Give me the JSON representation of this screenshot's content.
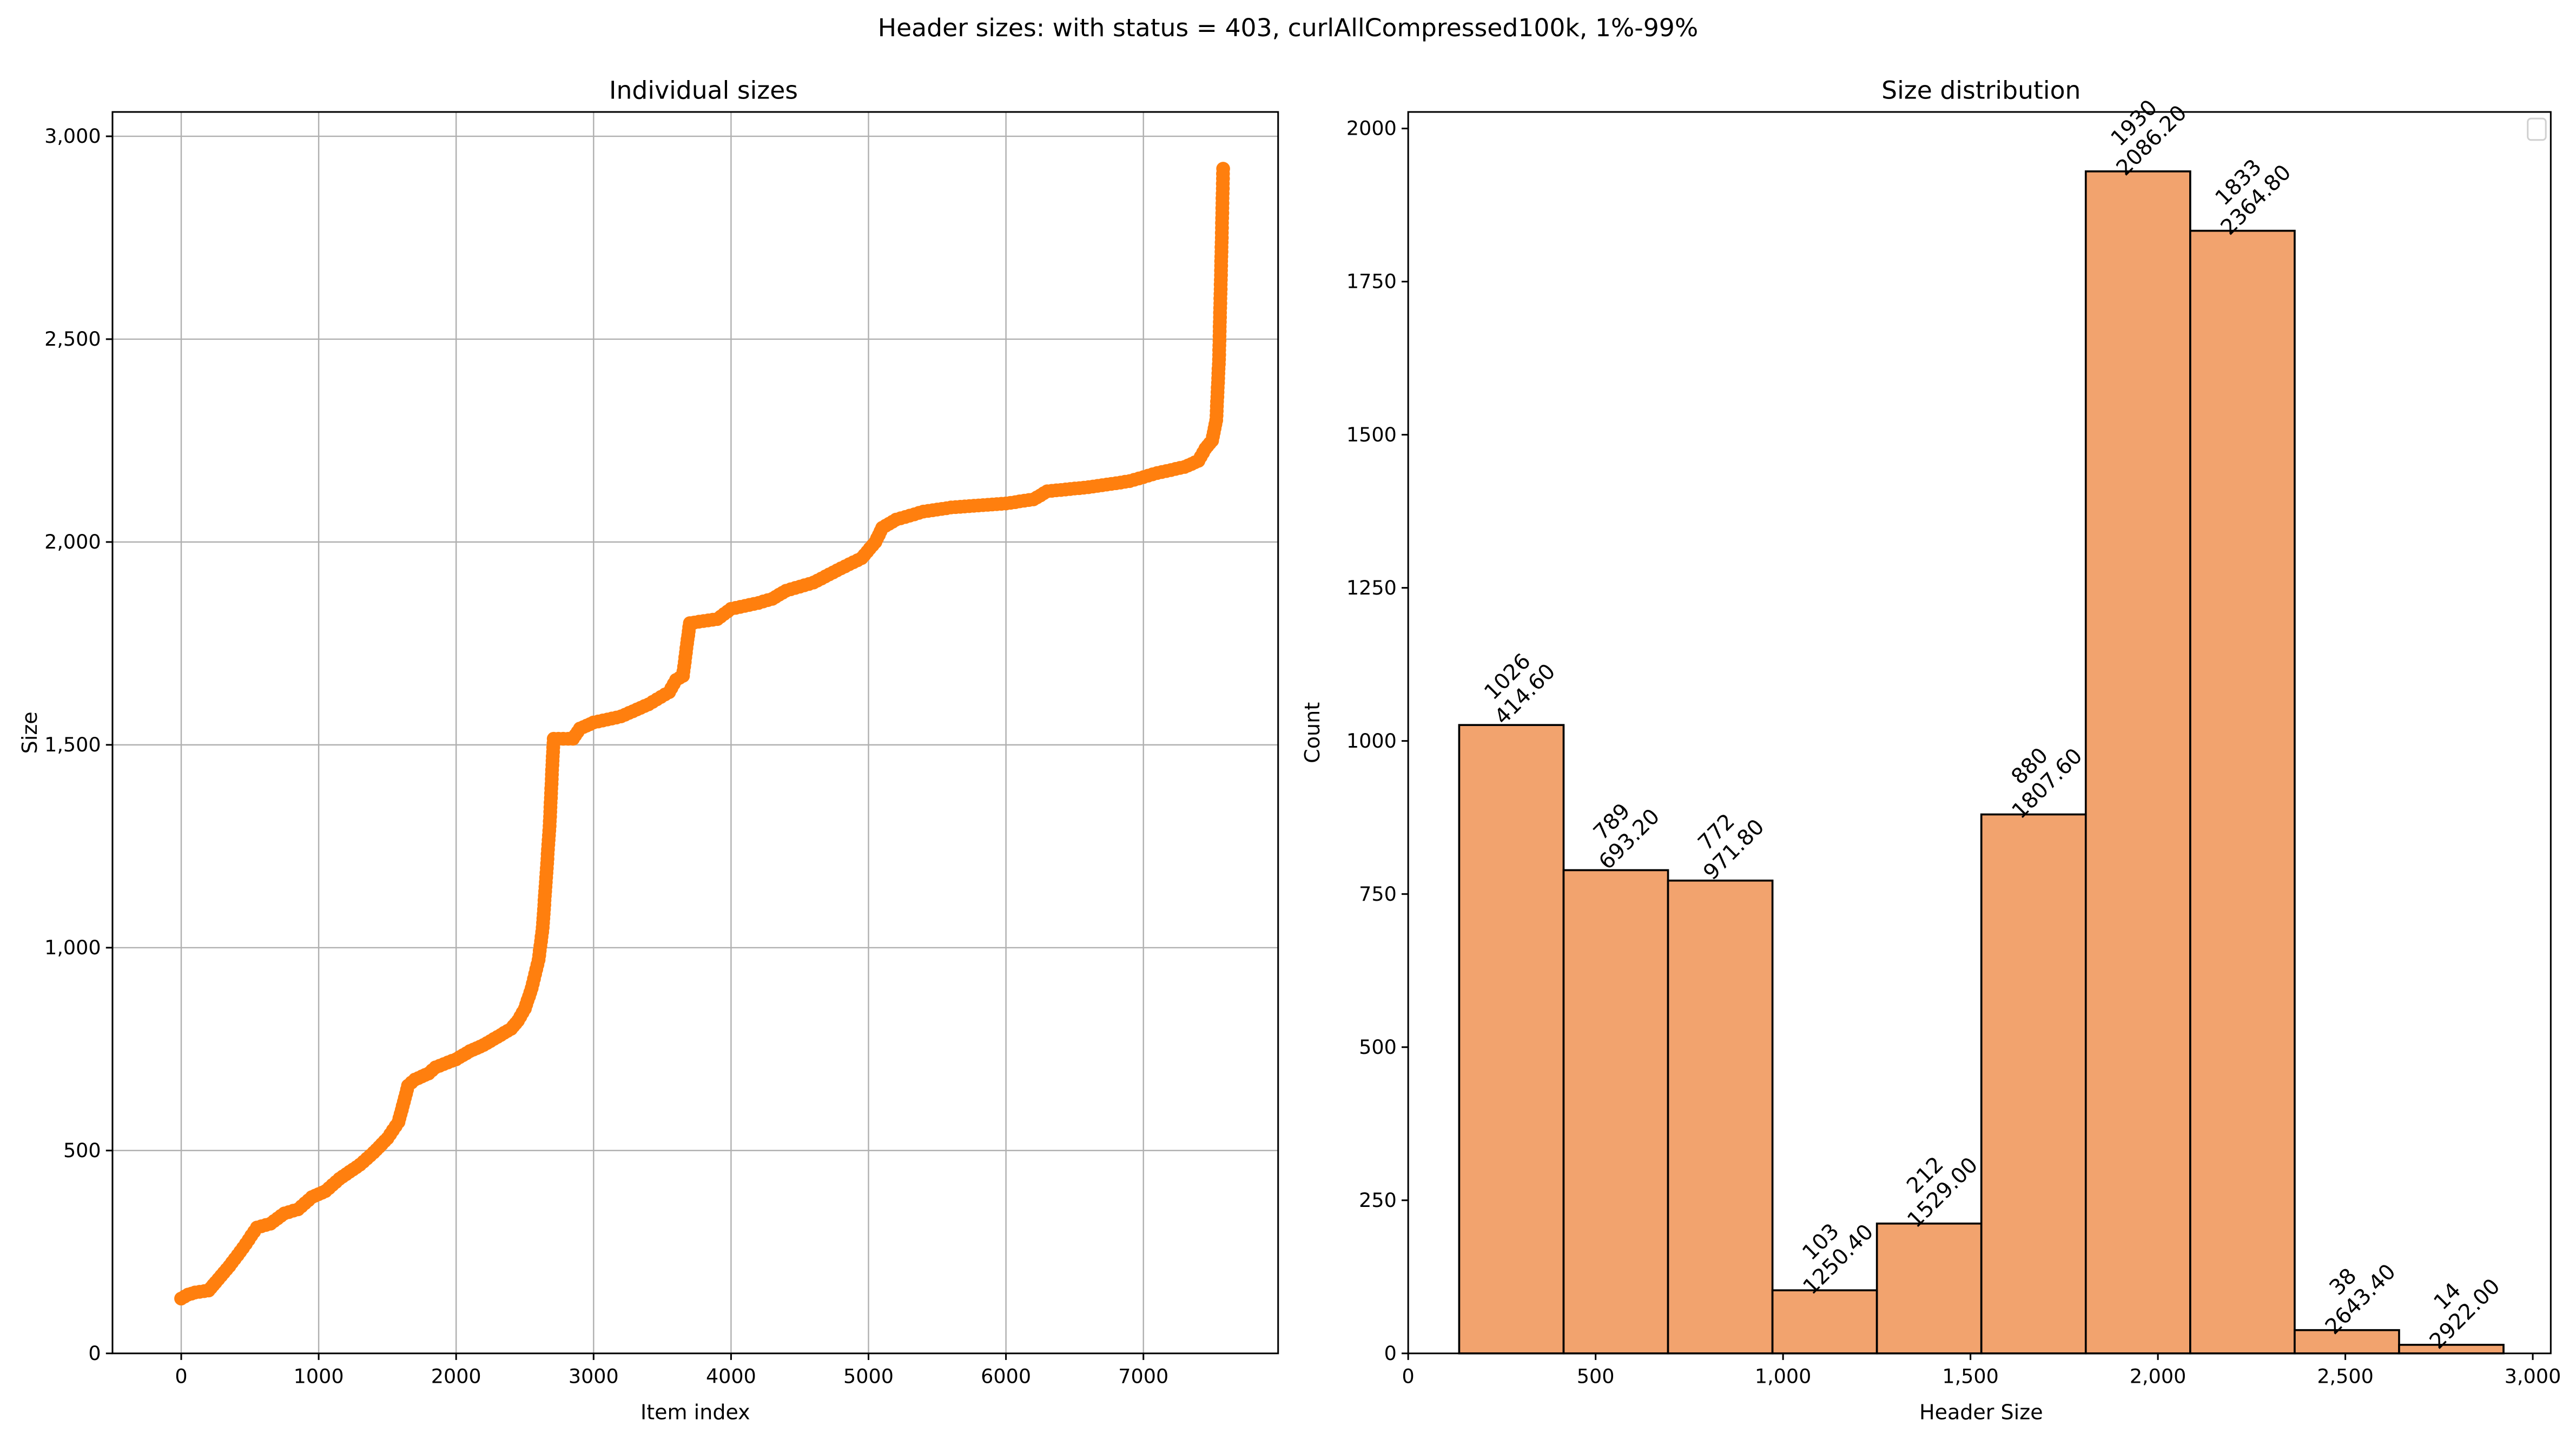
{
  "suptitle": "Header sizes: with status = 403, curlAllCompressed100k, 1%-99%",
  "colors": {
    "line": "#ff7f0e",
    "bar_fill": "#f2a36e",
    "bar_edge": "#000000",
    "grid": "#b0b0b0"
  },
  "chart_data": [
    {
      "type": "line",
      "title": "Individual sizes",
      "xlabel": "Item index",
      "ylabel": "Size",
      "xlim": [
        -500,
        7980
      ],
      "ylim": [
        0,
        3060
      ],
      "xticks": [
        0,
        1000,
        2000,
        3000,
        4000,
        5000,
        6000,
        7000
      ],
      "xtick_labels": [
        "0",
        "1000",
        "2000",
        "3000",
        "4000",
        "5000",
        "6000",
        "7000"
      ],
      "yticks": [
        0,
        500,
        1000,
        1500,
        2000,
        2500,
        3000
      ],
      "ytick_labels": [
        "0",
        "500",
        "1,000",
        "1,500",
        "2,000",
        "2,500",
        "3,000"
      ],
      "grid": true,
      "series": [
        {
          "name": "sizes",
          "x": [
            0,
            50,
            100,
            200,
            250,
            350,
            450,
            550,
            650,
            750,
            850,
            950,
            1050,
            1150,
            1300,
            1400,
            1500,
            1580,
            1620,
            1650,
            1700,
            1800,
            1850,
            2000,
            2100,
            2200,
            2300,
            2400,
            2450,
            2500,
            2550,
            2600,
            2630,
            2650,
            2680,
            2700,
            2710,
            2850,
            2900,
            3000,
            3200,
            3400,
            3550,
            3600,
            3650,
            3680,
            3700,
            3900,
            4000,
            4200,
            4300,
            4400,
            4600,
            4800,
            4950,
            5050,
            5100,
            5200,
            5400,
            5600,
            6000,
            6200,
            6300,
            6600,
            6900,
            7100,
            7300,
            7400,
            7450,
            7500,
            7530,
            7550,
            7560,
            7570,
            7580
          ],
          "y": [
            135,
            145,
            150,
            155,
            175,
            215,
            260,
            310,
            320,
            345,
            355,
            385,
            400,
            430,
            465,
            495,
            530,
            570,
            620,
            660,
            675,
            690,
            705,
            725,
            745,
            760,
            780,
            800,
            820,
            850,
            900,
            970,
            1050,
            1150,
            1300,
            1450,
            1515,
            1515,
            1540,
            1555,
            1570,
            1600,
            1630,
            1660,
            1670,
            1750,
            1800,
            1810,
            1835,
            1850,
            1860,
            1880,
            1900,
            1935,
            1960,
            2000,
            2035,
            2055,
            2075,
            2085,
            2095,
            2105,
            2125,
            2135,
            2150,
            2170,
            2185,
            2200,
            2230,
            2250,
            2300,
            2450,
            2600,
            2750,
            2920
          ]
        }
      ]
    },
    {
      "type": "bar",
      "title": "Size distribution",
      "xlabel": "Header Size",
      "ylabel": "Count",
      "xlim": [
        0,
        3048
      ],
      "ylim": [
        0,
        2027
      ],
      "xticks": [
        0,
        500,
        1000,
        1500,
        2000,
        2500,
        3000
      ],
      "xtick_labels": [
        "0",
        "500",
        "1,000",
        "1,500",
        "2,000",
        "2,500",
        "3,000"
      ],
      "yticks": [
        0,
        250,
        500,
        750,
        1000,
        1250,
        1500,
        1750,
        2000
      ],
      "ytick_labels": [
        "0",
        "250",
        "500",
        "750",
        "1000",
        "1250",
        "1500",
        "1750",
        "2000"
      ],
      "grid": false,
      "legend": "top-right (empty)",
      "bin_edges": [
        136,
        414.6,
        693.2,
        971.8,
        1250.4,
        1529.0,
        1807.6,
        2086.2,
        2364.8,
        2643.4,
        2922.0
      ],
      "counts": [
        1026,
        789,
        772,
        103,
        212,
        880,
        1930,
        1833,
        38,
        14
      ],
      "bar_labels": [
        [
          "1026",
          "414.60"
        ],
        [
          "789",
          "693.20"
        ],
        [
          "772",
          "971.80"
        ],
        [
          "103",
          "1250.40"
        ],
        [
          "212",
          "1529.00"
        ],
        [
          "880",
          "1807.60"
        ],
        [
          "1930",
          "2086.20"
        ],
        [
          "1833",
          "2364.80"
        ],
        [
          "38",
          "2643.40"
        ],
        [
          "14",
          "2922.00"
        ]
      ]
    }
  ]
}
